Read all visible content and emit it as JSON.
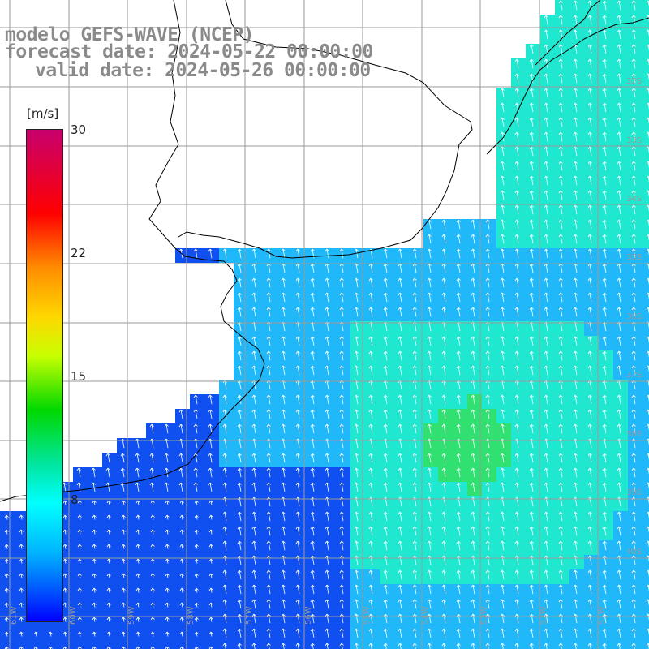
{
  "title": {
    "line1": "modelo GEFS-WAVE (NCEP)",
    "line2": "forecast date: 2024-05-22 00:00:00",
    "line3": "valid date: 2024-05-26 00:00:00"
  },
  "colorbar": {
    "unit": "[m/s]",
    "ticks": [
      "30",
      "22",
      "15",
      "8"
    ],
    "colors": [
      "#c8006e",
      "#ff0000",
      "#ff8c00",
      "#ffd700",
      "#00d800",
      "#00ffff",
      "#00b4ff",
      "#0000ff"
    ]
  },
  "lat_labels": [
    "32S",
    "33S",
    "34S",
    "35S",
    "36S",
    "37S",
    "38S",
    "39S",
    "40S"
  ],
  "lon_labels": [
    "61W",
    "60W",
    "59W",
    "58W",
    "57W",
    "56W",
    "55W",
    "54W",
    "53W",
    "52W",
    "51W"
  ],
  "map": {
    "variable": "wind speed with direction arrows",
    "ocean_colors": {
      "calm": "#1050f0",
      "moderate": "#20b8f8",
      "strong": "#20e8d0",
      "max": "#30e070"
    },
    "land_color": "#ffffff",
    "grid_color": "#a0a0a0"
  }
}
